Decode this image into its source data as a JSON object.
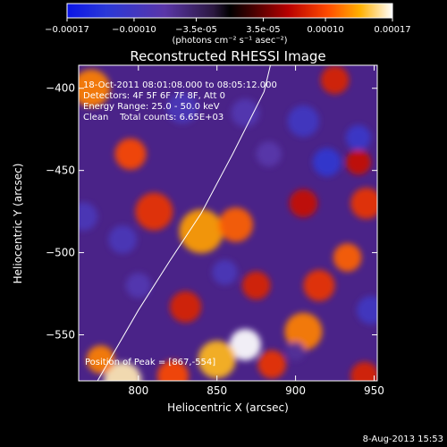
{
  "chart_data": {
    "type": "heatmap",
    "title": "Reconstructed RHESSI Image",
    "xlabel": "Heliocentric X (arcsec)",
    "ylabel": "Heliocentric Y (arcsec)",
    "xlim": [
      762,
      952
    ],
    "ylim": [
      -578,
      -386
    ],
    "x_ticks": [
      800,
      850,
      900,
      950
    ],
    "y_ticks": [
      -400,
      -450,
      -500,
      -550
    ],
    "colorbar": {
      "label": "(photons cm⁻² s⁻¹ asec⁻²)",
      "range": [
        -0.00017,
        0.00017
      ],
      "ticks": [
        {
          "value": -0.00017,
          "label": "-0.00017"
        },
        {
          "value": -0.0001,
          "label": "-0.00010"
        },
        {
          "value": -3.5e-05,
          "label": "-3.5e-05"
        },
        {
          "value": 3.5e-05,
          "label": "3.5e-05"
        },
        {
          "value": 0.0001,
          "label": "0.00010"
        },
        {
          "value": 0.00017,
          "label": "0.00017"
        }
      ]
    },
    "info_lines": [
      "18-Oct-2011 08:01:08.000 to 08:05:12.000",
      "Detectors: 4F 5F 6F 7F 8F, Att 0",
      "Energy Range: 25.0 - 50.0 keV",
      "Clean    Total counts: 6.65E+03"
    ],
    "peak_label": "Position of Peak = [867,-554]",
    "peak": [
      867,
      -554
    ],
    "limb_curve": [
      [
        774,
        -578
      ],
      [
        800,
        -535
      ],
      [
        820,
        -505
      ],
      [
        840,
        -476
      ],
      [
        860,
        -440
      ],
      [
        880,
        -402
      ],
      [
        884,
        -386
      ]
    ],
    "intensity_blobs": [
      {
        "x": 868,
        "y": -556,
        "r": 10,
        "v": 0.00017
      },
      {
        "x": 850,
        "y": -565,
        "r": 12,
        "v": 0.00014
      },
      {
        "x": 840,
        "y": -487,
        "r": 14,
        "v": 0.00013
      },
      {
        "x": 862,
        "y": -483,
        "r": 11,
        "v": 0.00011
      },
      {
        "x": 790,
        "y": -578,
        "r": 12,
        "v": 0.00016
      },
      {
        "x": 776,
        "y": -565,
        "r": 9,
        "v": 0.00012
      },
      {
        "x": 770,
        "y": -400,
        "r": 12,
        "v": 0.00012
      },
      {
        "x": 795,
        "y": -440,
        "r": 10,
        "v": 0.0001
      },
      {
        "x": 810,
        "y": -475,
        "r": 12,
        "v": 9e-05
      },
      {
        "x": 905,
        "y": -548,
        "r": 12,
        "v": 0.00012
      },
      {
        "x": 915,
        "y": -520,
        "r": 10,
        "v": 9e-05
      },
      {
        "x": 933,
        "y": -503,
        "r": 9,
        "v": 0.00011
      },
      {
        "x": 944,
        "y": -575,
        "r": 9,
        "v": 8e-05
      },
      {
        "x": 885,
        "y": -568,
        "r": 9,
        "v": 9e-05
      },
      {
        "x": 830,
        "y": -533,
        "r": 10,
        "v": 8e-05
      },
      {
        "x": 822,
        "y": -575,
        "r": 10,
        "v": 0.0001
      },
      {
        "x": 875,
        "y": -520,
        "r": 9,
        "v": 8e-05
      },
      {
        "x": 905,
        "y": -470,
        "r": 9,
        "v": 7e-05
      },
      {
        "x": 945,
        "y": -470,
        "r": 10,
        "v": 9e-05
      },
      {
        "x": 940,
        "y": -445,
        "r": 8,
        "v": 7e-05
      },
      {
        "x": 925,
        "y": -395,
        "r": 9,
        "v": 8e-05
      },
      {
        "x": 905,
        "y": -420,
        "r": 10,
        "v": -0.0001
      },
      {
        "x": 868,
        "y": -415,
        "r": 9,
        "v": -8e-05
      },
      {
        "x": 828,
        "y": -412,
        "r": 10,
        "v": -9e-05
      },
      {
        "x": 790,
        "y": -492,
        "r": 9,
        "v": -9e-05
      },
      {
        "x": 800,
        "y": -520,
        "r": 8,
        "v": -8e-05
      },
      {
        "x": 855,
        "y": -512,
        "r": 8,
        "v": -9e-05
      },
      {
        "x": 920,
        "y": -445,
        "r": 9,
        "v": -0.00012
      },
      {
        "x": 940,
        "y": -430,
        "r": 8,
        "v": -0.00011
      },
      {
        "x": 948,
        "y": -535,
        "r": 9,
        "v": -0.0001
      },
      {
        "x": 765,
        "y": -478,
        "r": 9,
        "v": -9e-05
      },
      {
        "x": 900,
        "y": -560,
        "r": 6,
        "v": -6e-05
      },
      {
        "x": 883,
        "y": -440,
        "r": 8,
        "v": -7e-05
      }
    ]
  },
  "footer": {
    "date": "8-Aug-2013 15:53"
  }
}
